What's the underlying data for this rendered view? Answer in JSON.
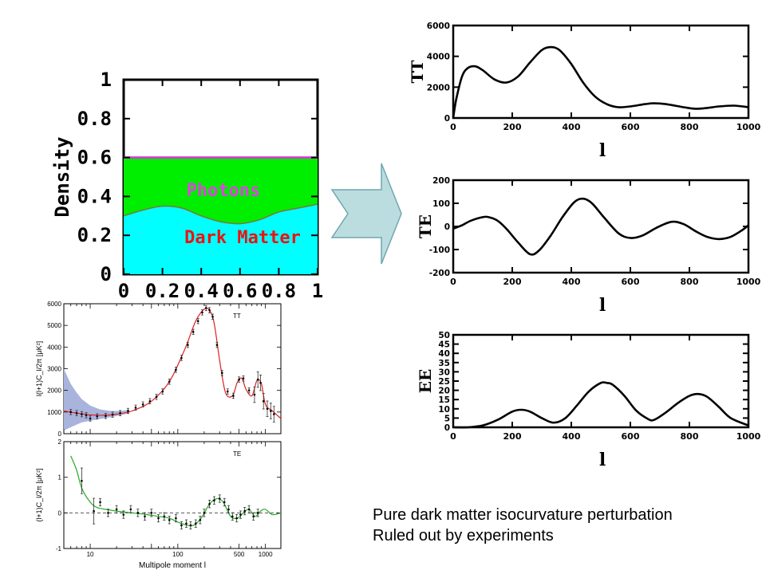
{
  "colors": {
    "photons_fill": "#00ee00",
    "dark_matter_fill": "#00ffff",
    "photons_text": "#dd44dd",
    "dark_matter_text": "#ee1111",
    "arrow_fill": "#bcdde0",
    "planck_tt_fit": "#e02020",
    "planck_te_fit": "#22aa22",
    "planck_band": "#a9b4dd"
  },
  "caption": {
    "line1": "Pure dark matter isocurvature perturbation",
    "line2": "Ruled out by experiments"
  },
  "chart_data": [
    {
      "id": "density",
      "type": "area",
      "ylabel": "Density",
      "xlim": [
        0,
        1
      ],
      "ylim": [
        0,
        1
      ],
      "xticks": [
        "0",
        "0.2",
        "0.4",
        "0.6",
        "0.8",
        "1"
      ],
      "yticks": [
        "0",
        "0.2",
        "0.4",
        "0.6",
        "0.8",
        "1"
      ],
      "series": [
        {
          "name": "Dark Matter",
          "x": [
            0,
            0.1,
            0.2,
            0.3,
            0.4,
            0.5,
            0.6,
            0.7,
            0.8,
            0.9,
            1.0
          ],
          "y": [
            0.3,
            0.33,
            0.35,
            0.34,
            0.3,
            0.27,
            0.26,
            0.28,
            0.32,
            0.34,
            0.36
          ]
        },
        {
          "name": "Photons",
          "x": [
            0,
            1
          ],
          "y": [
            0.6,
            0.6
          ]
        }
      ]
    },
    {
      "id": "theory_tt",
      "type": "line",
      "ylabel": "TT",
      "xlabel": "l",
      "xlim": [
        0,
        1000
      ],
      "ylim": [
        0,
        6000
      ],
      "xticks": [
        "0",
        "200",
        "400",
        "600",
        "800",
        "1000"
      ],
      "yticks": [
        "0",
        "2000",
        "4000",
        "6000"
      ],
      "x": [
        0,
        10,
        30,
        50,
        75,
        100,
        140,
        180,
        220,
        260,
        300,
        330,
        360,
        400,
        440,
        480,
        520,
        560,
        600,
        650,
        680,
        720,
        780,
        820,
        860,
        900,
        950,
        1000
      ],
      "y": [
        0,
        1200,
        2700,
        3250,
        3350,
        3100,
        2500,
        2300,
        2700,
        3600,
        4400,
        4600,
        4400,
        3500,
        2300,
        1400,
        900,
        700,
        750,
        900,
        950,
        900,
        700,
        600,
        650,
        750,
        800,
        700
      ]
    },
    {
      "id": "theory_te",
      "type": "line",
      "ylabel": "TE",
      "xlabel": "l",
      "xlim": [
        0,
        1000
      ],
      "ylim": [
        -200,
        200
      ],
      "xticks": [
        "0",
        "200",
        "400",
        "600",
        "800",
        "1000"
      ],
      "yticks": [
        "-200",
        "-100",
        "0",
        "100",
        "200"
      ],
      "x": [
        0,
        30,
        60,
        100,
        120,
        150,
        180,
        220,
        260,
        290,
        330,
        370,
        410,
        440,
        470,
        510,
        560,
        600,
        640,
        690,
        740,
        780,
        820,
        860,
        900,
        940,
        980,
        1000
      ],
      "y": [
        -10,
        5,
        25,
        40,
        40,
        25,
        -10,
        -70,
        -120,
        -105,
        -40,
        40,
        105,
        120,
        100,
        40,
        -30,
        -50,
        -40,
        -5,
        20,
        10,
        -20,
        -45,
        -55,
        -45,
        -15,
        5
      ]
    },
    {
      "id": "theory_ee",
      "type": "line",
      "ylabel": "EE",
      "xlabel": "l",
      "xlim": [
        0,
        1000
      ],
      "ylim": [
        0,
        50
      ],
      "xticks": [
        "0",
        "200",
        "400",
        "600",
        "800",
        "1000"
      ],
      "yticks": [
        "0",
        "5",
        "10",
        "15",
        "20",
        "25",
        "30",
        "35",
        "40",
        "45",
        "50"
      ],
      "x": [
        0,
        50,
        100,
        150,
        200,
        230,
        260,
        300,
        340,
        380,
        420,
        460,
        500,
        520,
        540,
        580,
        620,
        660,
        680,
        720,
        760,
        800,
        830,
        860,
        900,
        940,
        1000
      ],
      "y": [
        0,
        0,
        1,
        4,
        8.5,
        9.5,
        8.5,
        5,
        2.5,
        5,
        12,
        19.5,
        24,
        24,
        23,
        17,
        9,
        4.5,
        4,
        8,
        13,
        17,
        18,
        16.5,
        11,
        5,
        1
      ]
    },
    {
      "id": "planck_tt",
      "type": "line",
      "ylabel": "l(l+1)C_l/2π [μK²]",
      "legend": "TT",
      "xscale": "log",
      "xlim": [
        5,
        1500
      ],
      "ylim": [
        0,
        6000
      ],
      "yticks": [
        "0",
        "1000",
        "2000",
        "3000",
        "4000",
        "5000",
        "6000"
      ],
      "model_x": [
        5,
        7,
        10,
        14,
        20,
        30,
        50,
        80,
        120,
        160,
        200,
        230,
        260,
        300,
        350,
        420,
        480,
        540,
        600,
        700,
        800,
        900,
        1000,
        1200,
        1500
      ],
      "model_y": [
        1050,
        950,
        870,
        850,
        900,
        1050,
        1500,
        2400,
        3900,
        5200,
        5750,
        5700,
        5100,
        3400,
        1900,
        1750,
        2400,
        2550,
        2050,
        1750,
        2450,
        2300,
        1350,
        1050,
        700
      ],
      "points_x": [
        6,
        7,
        8,
        9,
        10,
        12,
        15,
        18,
        22,
        27,
        33,
        40,
        48,
        57,
        67,
        80,
        95,
        110,
        130,
        150,
        170,
        190,
        210,
        230,
        250,
        280,
        320,
        370,
        430,
        500,
        560,
        650,
        750,
        820,
        880,
        950,
        1050,
        1150,
        1250
      ],
      "points_y": [
        1000,
        950,
        900,
        850,
        700,
        800,
        820,
        880,
        950,
        1050,
        1200,
        1350,
        1500,
        1700,
        1950,
        2400,
        2950,
        3500,
        4100,
        4700,
        5200,
        5600,
        5800,
        5700,
        5400,
        4100,
        2800,
        1950,
        1750,
        2500,
        2550,
        2000,
        1800,
        2500,
        2350,
        1500,
        1150,
        1050,
        900
      ]
    },
    {
      "id": "planck_te",
      "type": "line",
      "ylabel": "(l+1)C_l/2π [μK²]",
      "xlabel": "Multipole moment l",
      "legend": "TE",
      "xscale": "log",
      "xlim": [
        5,
        1500
      ],
      "ylim": [
        -1,
        2
      ],
      "xticks": [
        "10",
        "100",
        "500",
        "1000"
      ],
      "xtick_vals": [
        10,
        100,
        500,
        1000
      ],
      "yticks": [
        "-1",
        "0",
        "1",
        "2"
      ],
      "model_x": [
        6,
        7,
        8,
        10,
        12,
        15,
        20,
        30,
        45,
        60,
        80,
        110,
        150,
        190,
        230,
        280,
        330,
        400,
        480,
        560,
        650,
        760,
        880,
        1000,
        1200,
        1500
      ],
      "model_y": [
        1.6,
        1.2,
        0.7,
        0.3,
        0.15,
        0.1,
        0.05,
        0.0,
        -0.05,
        -0.1,
        -0.15,
        -0.3,
        -0.35,
        -0.1,
        0.25,
        0.4,
        0.3,
        -0.1,
        -0.15,
        0.0,
        0.1,
        -0.1,
        0.05,
        0.1,
        -0.05,
        0.0
      ],
      "points_x": [
        8,
        11,
        13,
        16,
        20,
        24,
        29,
        35,
        42,
        50,
        60,
        70,
        80,
        95,
        110,
        125,
        140,
        160,
        180,
        200,
        230,
        260,
        300,
        340,
        380,
        420,
        470,
        520,
        580,
        650,
        730,
        820
      ],
      "points_y": [
        0.9,
        0.05,
        0.3,
        0.0,
        0.1,
        -0.05,
        0.1,
        0.0,
        -0.1,
        0.0,
        -0.15,
        -0.1,
        -0.2,
        -0.15,
        -0.35,
        -0.3,
        -0.35,
        -0.3,
        -0.2,
        0.0,
        0.25,
        0.35,
        0.4,
        0.3,
        0.1,
        -0.1,
        -0.15,
        -0.05,
        0.05,
        0.1,
        -0.1,
        0.0
      ]
    }
  ],
  "density_labels": {
    "photons": "Photons",
    "dark_matter": "Dark Matter"
  }
}
